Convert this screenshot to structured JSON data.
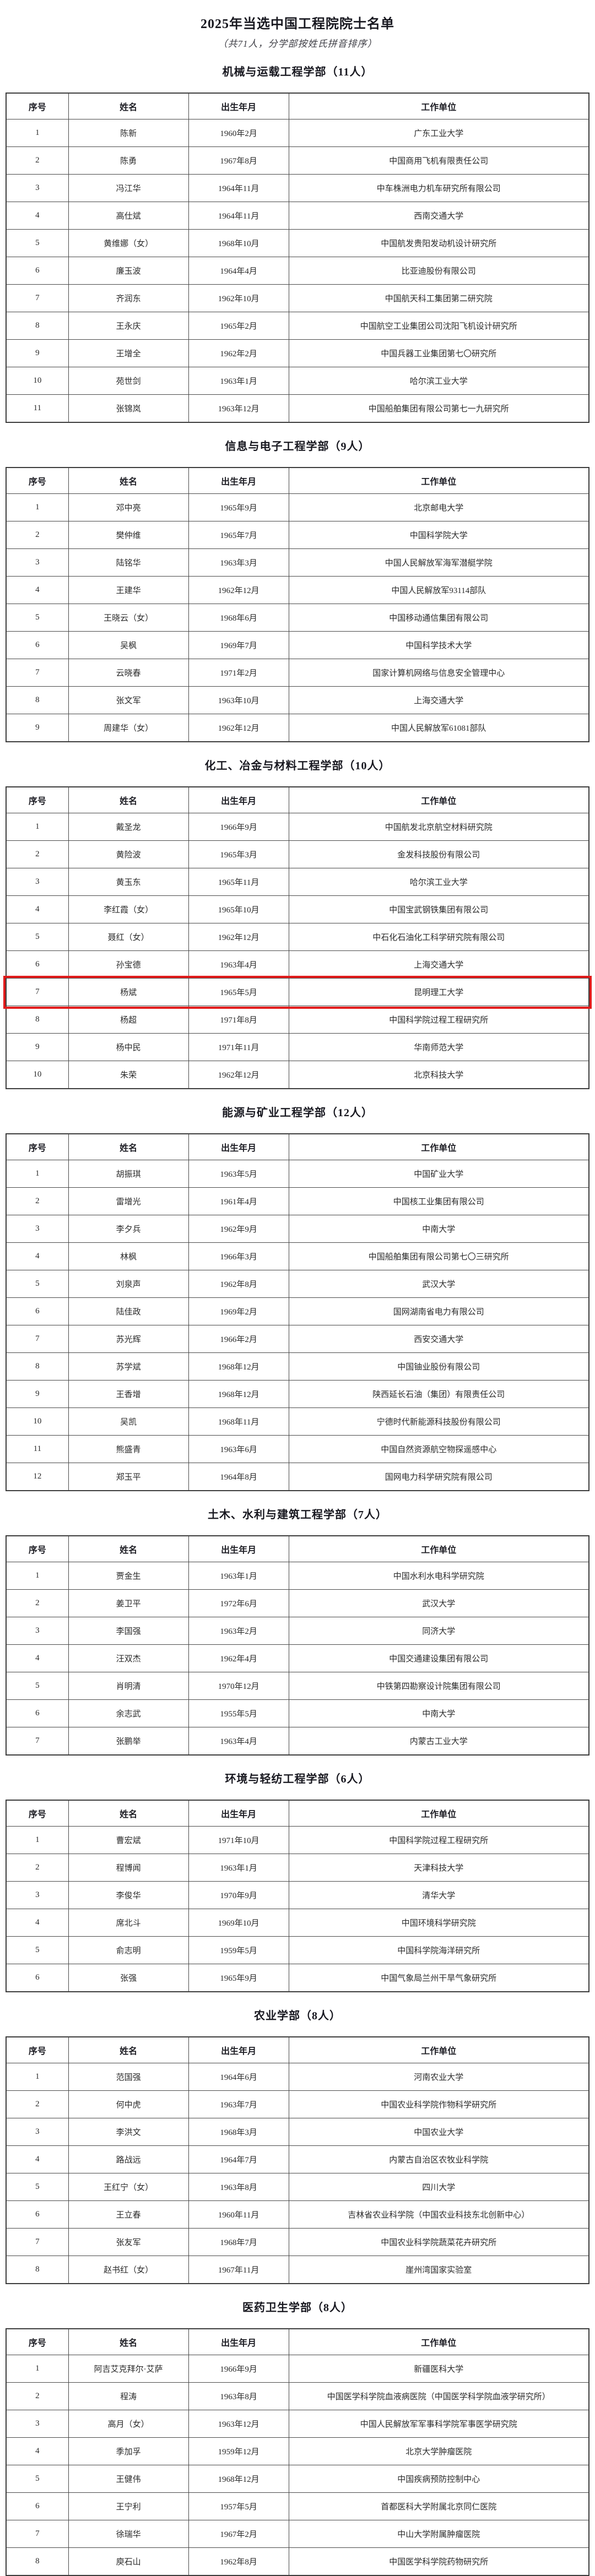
{
  "document": {
    "title": "2025年当选中国工程院院士名单",
    "subtitle": "（共71人，分学部按姓氏拼音排序）"
  },
  "table": {
    "columns": [
      "序号",
      "姓名",
      "出生年月",
      "工作单位"
    ]
  },
  "colors": {
    "highlight_border": "#e11b1b"
  },
  "sections": [
    {
      "heading": "机械与运载工程学部（11人）",
      "rows": [
        {
          "no": "1",
          "name": "陈新",
          "birth": "1960年2月",
          "org": "广东工业大学"
        },
        {
          "no": "2",
          "name": "陈勇",
          "birth": "1967年8月",
          "org": "中国商用飞机有限责任公司"
        },
        {
          "no": "3",
          "name": "冯江华",
          "birth": "1964年11月",
          "org": "中车株洲电力机车研究所有限公司"
        },
        {
          "no": "4",
          "name": "高仕斌",
          "birth": "1964年11月",
          "org": "西南交通大学"
        },
        {
          "no": "5",
          "name": "黄维娜（女）",
          "birth": "1968年10月",
          "org": "中国航发贵阳发动机设计研究所"
        },
        {
          "no": "6",
          "name": "廉玉波",
          "birth": "1964年4月",
          "org": "比亚迪股份有限公司"
        },
        {
          "no": "7",
          "name": "齐润东",
          "birth": "1962年10月",
          "org": "中国航天科工集团第二研究院"
        },
        {
          "no": "8",
          "name": "王永庆",
          "birth": "1965年2月",
          "org": "中国航空工业集团公司沈阳飞机设计研究所"
        },
        {
          "no": "9",
          "name": "王增全",
          "birth": "1962年2月",
          "org": "中国兵器工业集团第七〇研究所"
        },
        {
          "no": "10",
          "name": "苑世剑",
          "birth": "1963年1月",
          "org": "哈尔滨工业大学"
        },
        {
          "no": "11",
          "name": "张锦岚",
          "birth": "1963年12月",
          "org": "中国船舶集团有限公司第七一九研究所"
        }
      ]
    },
    {
      "heading": "信息与电子工程学部（9人）",
      "rows": [
        {
          "no": "1",
          "name": "邓中亮",
          "birth": "1965年9月",
          "org": "北京邮电大学"
        },
        {
          "no": "2",
          "name": "樊仲维",
          "birth": "1965年7月",
          "org": "中国科学院大学"
        },
        {
          "no": "3",
          "name": "陆铭华",
          "birth": "1963年3月",
          "org": "中国人民解放军海军潜艇学院"
        },
        {
          "no": "4",
          "name": "王建华",
          "birth": "1962年12月",
          "org": "中国人民解放军93114部队"
        },
        {
          "no": "5",
          "name": "王晓云（女）",
          "birth": "1968年6月",
          "org": "中国移动通信集团有限公司"
        },
        {
          "no": "6",
          "name": "吴枫",
          "birth": "1969年7月",
          "org": "中国科学技术大学"
        },
        {
          "no": "7",
          "name": "云晓春",
          "birth": "1971年2月",
          "org": "国家计算机网络与信息安全管理中心"
        },
        {
          "no": "8",
          "name": "张文军",
          "birth": "1963年10月",
          "org": "上海交通大学"
        },
        {
          "no": "9",
          "name": "周建华（女）",
          "birth": "1962年12月",
          "org": "中国人民解放军61081部队"
        }
      ]
    },
    {
      "heading": "化工、冶金与材料工程学部（10人）",
      "rows": [
        {
          "no": "1",
          "name": "戴圣龙",
          "birth": "1966年9月",
          "org": "中国航发北京航空材料研究院"
        },
        {
          "no": "2",
          "name": "黄险波",
          "birth": "1965年3月",
          "org": "金发科技股份有限公司"
        },
        {
          "no": "3",
          "name": "黄玉东",
          "birth": "1965年11月",
          "org": "哈尔滨工业大学"
        },
        {
          "no": "4",
          "name": "李红霞（女）",
          "birth": "1965年10月",
          "org": "中国宝武钢铁集团有限公司"
        },
        {
          "no": "5",
          "name": "聂红（女）",
          "birth": "1962年12月",
          "org": "中石化石油化工科学研究院有限公司"
        },
        {
          "no": "6",
          "name": "孙宝德",
          "birth": "1963年4月",
          "org": "上海交通大学"
        },
        {
          "no": "7",
          "name": "杨斌",
          "birth": "1965年5月",
          "org": "昆明理工大学",
          "highlighted": true
        },
        {
          "no": "8",
          "name": "杨超",
          "birth": "1971年8月",
          "org": "中国科学院过程工程研究所"
        },
        {
          "no": "9",
          "name": "杨中民",
          "birth": "1971年11月",
          "org": "华南师范大学"
        },
        {
          "no": "10",
          "name": "朱荣",
          "birth": "1962年12月",
          "org": "北京科技大学"
        }
      ]
    },
    {
      "heading": "能源与矿业工程学部（12人）",
      "rows": [
        {
          "no": "1",
          "name": "胡振琪",
          "birth": "1963年5月",
          "org": "中国矿业大学"
        },
        {
          "no": "2",
          "name": "雷增光",
          "birth": "1961年4月",
          "org": "中国核工业集团有限公司"
        },
        {
          "no": "3",
          "name": "李夕兵",
          "birth": "1962年9月",
          "org": "中南大学"
        },
        {
          "no": "4",
          "name": "林枫",
          "birth": "1966年3月",
          "org": "中国船舶集团有限公司第七〇三研究所"
        },
        {
          "no": "5",
          "name": "刘泉声",
          "birth": "1962年8月",
          "org": "武汉大学"
        },
        {
          "no": "6",
          "name": "陆佳政",
          "birth": "1969年2月",
          "org": "国网湖南省电力有限公司"
        },
        {
          "no": "7",
          "name": "苏光辉",
          "birth": "1966年2月",
          "org": "西安交通大学"
        },
        {
          "no": "8",
          "name": "苏学斌",
          "birth": "1968年12月",
          "org": "中国铀业股份有限公司"
        },
        {
          "no": "9",
          "name": "王香增",
          "birth": "1968年12月",
          "org": "陕西延长石油（集团）有限责任公司"
        },
        {
          "no": "10",
          "name": "吴凯",
          "birth": "1968年11月",
          "org": "宁德时代新能源科技股份有限公司"
        },
        {
          "no": "11",
          "name": "熊盛青",
          "birth": "1963年6月",
          "org": "中国自然资源航空物探遥感中心"
        },
        {
          "no": "12",
          "name": "郑玉平",
          "birth": "1964年8月",
          "org": "国网电力科学研究院有限公司"
        }
      ]
    },
    {
      "heading": "土木、水利与建筑工程学部（7人）",
      "rows": [
        {
          "no": "1",
          "name": "贾金生",
          "birth": "1963年1月",
          "org": "中国水利水电科学研究院"
        },
        {
          "no": "2",
          "name": "姜卫平",
          "birth": "1972年6月",
          "org": "武汉大学"
        },
        {
          "no": "3",
          "name": "李国强",
          "birth": "1963年2月",
          "org": "同济大学"
        },
        {
          "no": "4",
          "name": "汪双杰",
          "birth": "1962年4月",
          "org": "中国交通建设集团有限公司"
        },
        {
          "no": "5",
          "name": "肖明清",
          "birth": "1970年12月",
          "org": "中铁第四勘察设计院集团有限公司"
        },
        {
          "no": "6",
          "name": "余志武",
          "birth": "1955年5月",
          "org": "中南大学"
        },
        {
          "no": "7",
          "name": "张鹏举",
          "birth": "1963年4月",
          "org": "内蒙古工业大学"
        }
      ]
    },
    {
      "heading": "环境与轻纺工程学部（6人）",
      "rows": [
        {
          "no": "1",
          "name": "曹宏斌",
          "birth": "1971年10月",
          "org": "中国科学院过程工程研究所"
        },
        {
          "no": "2",
          "name": "程博闻",
          "birth": "1963年1月",
          "org": "天津科技大学"
        },
        {
          "no": "3",
          "name": "李俊华",
          "birth": "1970年9月",
          "org": "清华大学"
        },
        {
          "no": "4",
          "name": "席北斗",
          "birth": "1969年10月",
          "org": "中国环境科学研究院"
        },
        {
          "no": "5",
          "name": "俞志明",
          "birth": "1959年5月",
          "org": "中国科学院海洋研究所"
        },
        {
          "no": "6",
          "name": "张强",
          "birth": "1965年9月",
          "org": "中国气象局兰州干旱气象研究所"
        }
      ]
    },
    {
      "heading": "农业学部（8人）",
      "rows": [
        {
          "no": "1",
          "name": "范国强",
          "birth": "1964年6月",
          "org": "河南农业大学"
        },
        {
          "no": "2",
          "name": "何中虎",
          "birth": "1963年7月",
          "org": "中国农业科学院作物科学研究所"
        },
        {
          "no": "3",
          "name": "李洪文",
          "birth": "1968年3月",
          "org": "中国农业大学"
        },
        {
          "no": "4",
          "name": "路战远",
          "birth": "1964年7月",
          "org": "内蒙古自治区农牧业科学院"
        },
        {
          "no": "5",
          "name": "王红宁（女）",
          "birth": "1963年8月",
          "org": "四川大学"
        },
        {
          "no": "6",
          "name": "王立春",
          "birth": "1960年11月",
          "org": "吉林省农业科学院（中国农业科技东北创新中心）"
        },
        {
          "no": "7",
          "name": "张友军",
          "birth": "1968年7月",
          "org": "中国农业科学院蔬菜花卉研究所"
        },
        {
          "no": "8",
          "name": "赵书红（女）",
          "birth": "1967年11月",
          "org": "崖州湾国家实验室"
        }
      ]
    },
    {
      "heading": "医药卫生学部（8人）",
      "rows": [
        {
          "no": "1",
          "name": "阿吉艾克拜尔·艾萨",
          "birth": "1966年9月",
          "org": "新疆医科大学"
        },
        {
          "no": "2",
          "name": "程涛",
          "birth": "1963年8月",
          "org": "中国医学科学院血液病医院（中国医学科学院血液学研究所）"
        },
        {
          "no": "3",
          "name": "高月（女）",
          "birth": "1963年12月",
          "org": "中国人民解放军军事科学院军事医学研究院"
        },
        {
          "no": "4",
          "name": "季加孚",
          "birth": "1959年12月",
          "org": "北京大学肿瘤医院"
        },
        {
          "no": "5",
          "name": "王健伟",
          "birth": "1968年12月",
          "org": "中国疾病预防控制中心"
        },
        {
          "no": "6",
          "name": "王宁利",
          "birth": "1957年5月",
          "org": "首都医科大学附属北京同仁医院"
        },
        {
          "no": "7",
          "name": "徐瑞华",
          "birth": "1967年2月",
          "org": "中山大学附属肿瘤医院"
        },
        {
          "no": "8",
          "name": "庾石山",
          "birth": "1962年8月",
          "org": "中国医学科学院药物研究所"
        }
      ]
    }
  ]
}
